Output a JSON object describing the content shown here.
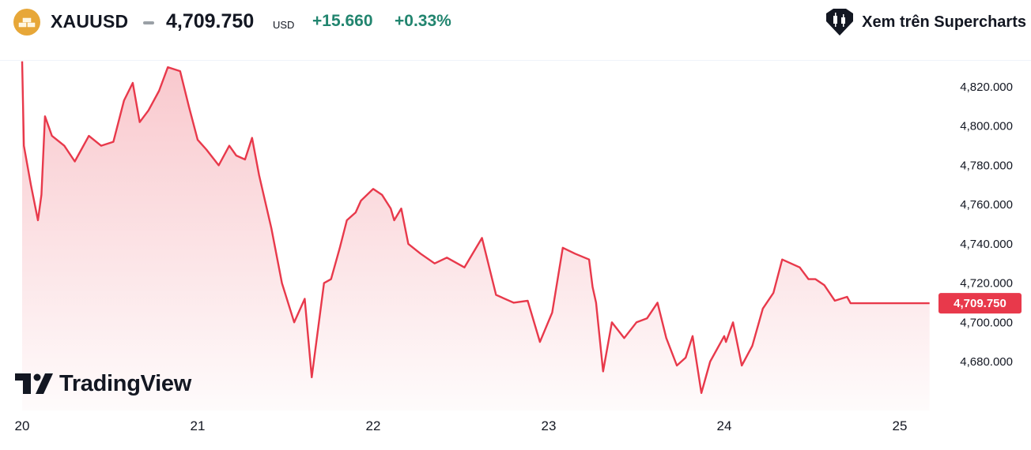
{
  "header": {
    "symbol": "XAUUSD",
    "price": "4,709.750",
    "currency": "USD",
    "change": "+15.660",
    "change_percent": "+0.33%",
    "change_color": "#22856f",
    "coin_icon": "gold-bars-icon",
    "supercharts_label": "Xem trên Supercharts",
    "supercharts_icon": "candlestick-icon"
  },
  "branding": {
    "logo_text": "TradingView"
  },
  "chart_data": {
    "type": "area",
    "title": "",
    "xlabel": "",
    "ylabel": "",
    "line_color": "#e8394b",
    "ylim": [
      4660,
      4832
    ],
    "y_ticks": [
      4820,
      4800,
      4780,
      4760,
      4740,
      4720,
      4700,
      4680
    ],
    "y_tick_labels": [
      "4,820.000",
      "4,800.000",
      "4,780.000",
      "4,760.000",
      "4,740.000",
      "4,720.000",
      "4,700.000",
      "4,680.000"
    ],
    "x_ticks": [
      20,
      21,
      22,
      23,
      24,
      25
    ],
    "x_tick_labels": [
      "20",
      "21",
      "22",
      "23",
      "24",
      "25"
    ],
    "xlim": [
      20,
      25.25
    ],
    "last_value": 4709.75,
    "last_value_label": "4,709.750",
    "series": [
      {
        "x": [
          20.0,
          20.01,
          20.05,
          20.09,
          20.11,
          20.13,
          20.17,
          20.24,
          20.3,
          20.38,
          20.45,
          20.52,
          20.58,
          20.63,
          20.67,
          20.72,
          20.78,
          20.83,
          20.9,
          20.95,
          21.0,
          21.05,
          21.12,
          21.18,
          21.22,
          21.27,
          21.31,
          21.35,
          21.42,
          21.48,
          21.55,
          21.61,
          21.65,
          21.72,
          21.76,
          21.81,
          21.85,
          21.9,
          21.93,
          22.0,
          22.05,
          22.1,
          22.12,
          22.16,
          22.2,
          22.27,
          22.35,
          22.42,
          22.52,
          22.62,
          22.7,
          22.8,
          22.88,
          22.95,
          23.02,
          23.08,
          23.15,
          23.23,
          23.25,
          23.27,
          23.31,
          23.36,
          23.43,
          23.5,
          23.56,
          23.62,
          23.67,
          23.73,
          23.78,
          23.82,
          23.87,
          23.92,
          24.0,
          24.01,
          24.05,
          24.1,
          24.16,
          24.22,
          24.28,
          24.33,
          24.38,
          24.43,
          24.48,
          24.52,
          24.57,
          24.63,
          24.7,
          24.72,
          24.75,
          24.78,
          24.82,
          24.86,
          24.92,
          24.98,
          25.05,
          25.1,
          25.13,
          25.17
        ],
        "y": [
          4833,
          4790,
          4770,
          4752,
          4765,
          4805,
          4795,
          4790,
          4782,
          4795,
          4790,
          4792,
          4813,
          4822,
          4802,
          4808,
          4818,
          4830,
          4828,
          4810,
          4793,
          4788,
          4780,
          4790,
          4785,
          4783,
          4794,
          4775,
          4748,
          4720,
          4700,
          4712,
          4672,
          4720,
          4722,
          4738,
          4752,
          4756,
          4762,
          4768,
          4765,
          4758,
          4752,
          4758,
          4740,
          4735,
          4730,
          4733,
          4728,
          4743,
          4714,
          4710,
          4711,
          4690,
          4705,
          4738,
          4735,
          4732,
          4718,
          4710,
          4675,
          4700,
          4692,
          4700,
          4702,
          4710,
          4692,
          4678,
          4682,
          4693,
          4664,
          4680,
          4693,
          4690,
          4700,
          4678,
          4688,
          4707,
          4715,
          4732,
          4730,
          4728,
          4722,
          4722,
          4719,
          4711,
          4713,
          4709.75,
          4709.75,
          4709.75,
          4709.75,
          4709.75,
          4709.75,
          4709.75,
          4709.75,
          4709.75,
          4709.75,
          4709.75
        ]
      }
    ]
  }
}
